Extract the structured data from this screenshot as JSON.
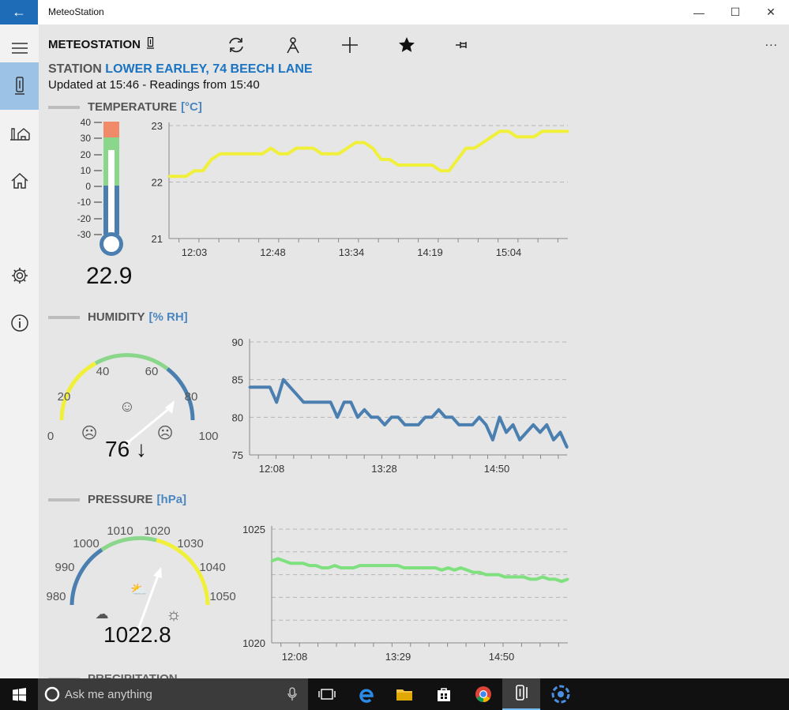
{
  "window": {
    "title": "MeteoStation",
    "back_icon": "arrow-left-icon"
  },
  "toolbar": {
    "brand": "METEOSTATION",
    "icons": [
      "refresh-icon",
      "station-icon",
      "add-icon",
      "favorite-star-icon",
      "pin-icon"
    ],
    "more": "..."
  },
  "station": {
    "label": "STATION",
    "name": "LOWER EARLEY, 74 BEECH LANE",
    "updated": "Updated at 15:46 - Readings from 15:40"
  },
  "sidebar": {
    "items": [
      "menu-icon",
      "weather-station-icon",
      "home-weather-icon",
      "home-icon",
      "settings-icon",
      "info-icon"
    ],
    "active": "weather-station-icon"
  },
  "temperature": {
    "title": "TEMPERATURE",
    "unit": "[°C]",
    "value": "22.9",
    "thermo_ticks": [
      "40",
      "30",
      "20",
      "10",
      "0",
      "-10",
      "-20",
      "-30"
    ]
  },
  "humidity": {
    "title": "HUMIDITY",
    "unit": "[% RH]",
    "value": "76 ↓",
    "gauge_ticks": [
      "0",
      "20",
      "40",
      "60",
      "80",
      "100"
    ]
  },
  "pressure": {
    "title": "PRESSURE",
    "unit": "[hPa]",
    "value": "1022.8",
    "gauge_ticks": [
      "980",
      "990",
      "1000",
      "1010",
      "1020",
      "1030",
      "1040",
      "1050"
    ]
  },
  "next_section": {
    "title": "PRECIPITATION"
  },
  "chart_data": [
    {
      "type": "line",
      "color": "#f0f03a",
      "ylim": [
        21,
        23
      ],
      "yticks": [
        "23",
        "22",
        "21"
      ],
      "xticks": [
        "12:03",
        "12:48",
        "13:34",
        "14:19",
        "15:04"
      ],
      "grid": true,
      "series": [
        {
          "values": [
            22.1,
            22.1,
            22.1,
            22.2,
            22.2,
            22.4,
            22.5,
            22.5,
            22.5,
            22.5,
            22.5,
            22.5,
            22.6,
            22.5,
            22.5,
            22.6,
            22.6,
            22.6,
            22.5,
            22.5,
            22.5,
            22.6,
            22.7,
            22.7,
            22.6,
            22.4,
            22.4,
            22.3,
            22.3,
            22.3,
            22.3,
            22.3,
            22.2,
            22.2,
            22.4,
            22.6,
            22.6,
            22.7,
            22.8,
            22.9,
            22.9,
            22.8,
            22.8,
            22.8,
            22.9,
            22.9,
            22.9,
            22.9
          ]
        }
      ]
    },
    {
      "type": "line",
      "color": "#4a7fb0",
      "ylim": [
        75,
        90
      ],
      "yticks": [
        "90",
        "85",
        "80",
        "75"
      ],
      "xticks": [
        "12:08",
        "13:28",
        "14:50"
      ],
      "grid": true,
      "series": [
        {
          "values": [
            84,
            84,
            84,
            84,
            82,
            85,
            84,
            83,
            82,
            82,
            82,
            82,
            82,
            80,
            82,
            82,
            80,
            81,
            80,
            80,
            79,
            80,
            80,
            79,
            79,
            79,
            80,
            80,
            81,
            80,
            80,
            79,
            79,
            79,
            80,
            79,
            77,
            80,
            78,
            79,
            77,
            78,
            79,
            78,
            79,
            77,
            78,
            76
          ]
        }
      ]
    },
    {
      "type": "line",
      "color": "#7fe07f",
      "ylim": [
        1020,
        1025
      ],
      "yticks": [
        "1025",
        "1020"
      ],
      "xticks": [
        "12:08",
        "13:29",
        "14:50"
      ],
      "grid": true,
      "series": [
        {
          "values": [
            1023.6,
            1023.7,
            1023.6,
            1023.5,
            1023.5,
            1023.5,
            1023.4,
            1023.4,
            1023.3,
            1023.3,
            1023.4,
            1023.3,
            1023.3,
            1023.3,
            1023.4,
            1023.4,
            1023.4,
            1023.4,
            1023.4,
            1023.4,
            1023.4,
            1023.3,
            1023.3,
            1023.3,
            1023.3,
            1023.3,
            1023.3,
            1023.2,
            1023.3,
            1023.2,
            1023.3,
            1023.2,
            1023.1,
            1023.1,
            1023.0,
            1023.0,
            1023.0,
            1022.9,
            1022.9,
            1022.9,
            1022.9,
            1022.8,
            1022.8,
            1022.9,
            1022.8,
            1022.8,
            1022.7,
            1022.8
          ]
        }
      ]
    }
  ],
  "taskbar": {
    "search_placeholder": "Ask me anything",
    "apps": [
      "task-view-icon",
      "edge-icon",
      "file-explorer-icon",
      "store-icon",
      "chrome-icon",
      "meteostation-app-icon",
      "other-app-icon"
    ]
  }
}
